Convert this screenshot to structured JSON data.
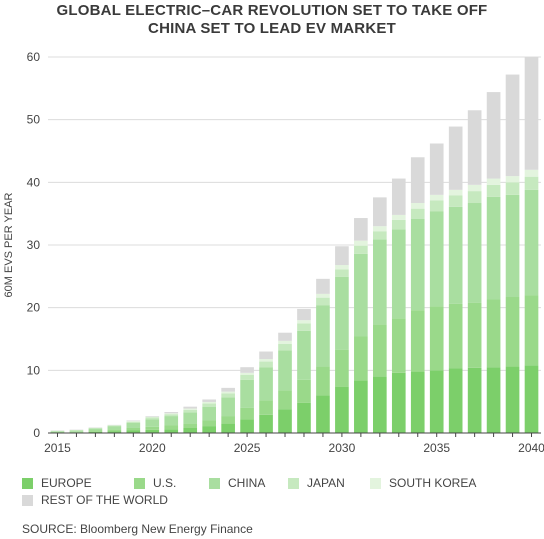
{
  "chart_data": {
    "type": "bar",
    "stacked": true,
    "title": "GLOBAL ELECTRIC–CAR REVOLUTION SET TO TAKE OFF",
    "subtitle": "CHINA SET TO LEAD EV MARKET",
    "ylabel": "60M EVS PER YEAR",
    "xlabel": "",
    "ylim": [
      0,
      60
    ],
    "yticks": [
      "0",
      "10",
      "20",
      "30",
      "40",
      "50",
      "60"
    ],
    "xticks": [
      "2015",
      "2020",
      "2025",
      "2030",
      "2035",
      "2040"
    ],
    "categories": [
      2015,
      2016,
      2017,
      2018,
      2019,
      2020,
      2021,
      2022,
      2023,
      2024,
      2025,
      2026,
      2027,
      2028,
      2029,
      2030,
      2031,
      2032,
      2033,
      2034,
      2035,
      2036,
      2037,
      2038,
      2039,
      2040
    ],
    "series": [
      {
        "name": "EUROPE",
        "color": "#7ccf6a",
        "values": [
          0.1,
          0.1,
          0.2,
          0.3,
          0.4,
          0.5,
          0.6,
          0.8,
          1.1,
          1.5,
          2.2,
          2.9,
          3.8,
          4.8,
          6.0,
          7.4,
          8.4,
          9.0,
          9.6,
          9.8,
          10.0,
          10.3,
          10.4,
          10.5,
          10.6,
          10.8
        ]
      },
      {
        "name": "U.S.",
        "color": "#9ad98a",
        "values": [
          0.1,
          0.1,
          0.2,
          0.3,
          0.4,
          0.5,
          0.6,
          0.7,
          0.9,
          1.2,
          1.8,
          2.3,
          3.0,
          3.7,
          4.6,
          5.9,
          7.0,
          8.3,
          8.7,
          9.8,
          10.2,
          10.3,
          10.4,
          10.8,
          11.1,
          11.2
        ]
      },
      {
        "name": "CHINA",
        "color": "#a9dea0",
        "values": [
          0.1,
          0.2,
          0.3,
          0.5,
          0.8,
          1.2,
          1.5,
          1.8,
          2.2,
          3.0,
          4.5,
          5.3,
          6.4,
          7.8,
          9.8,
          11.6,
          13.2,
          13.6,
          14.2,
          14.6,
          15.2,
          15.5,
          15.9,
          16.4,
          16.3,
          16.8
        ]
      },
      {
        "name": "JAPAN",
        "color": "#c6e9bf",
        "values": [
          0.05,
          0.05,
          0.1,
          0.1,
          0.2,
          0.3,
          0.3,
          0.4,
          0.5,
          0.6,
          0.8,
          0.9,
          1.0,
          1.2,
          1.2,
          1.2,
          1.3,
          1.3,
          1.5,
          1.6,
          1.7,
          1.8,
          1.9,
          1.9,
          2.0,
          2.1
        ]
      },
      {
        "name": "SOUTH KOREA",
        "color": "#e3f4de",
        "values": [
          0.02,
          0.03,
          0.05,
          0.05,
          0.1,
          0.1,
          0.15,
          0.2,
          0.25,
          0.3,
          0.3,
          0.4,
          0.5,
          0.5,
          0.6,
          0.7,
          0.8,
          0.8,
          0.8,
          0.9,
          0.9,
          0.9,
          1.0,
          1.0,
          1.0,
          1.1
        ]
      },
      {
        "name": "REST OF THE WORLD",
        "color": "#d9d9d9",
        "values": [
          0.05,
          0.05,
          0.05,
          0.05,
          0.1,
          0.1,
          0.2,
          0.3,
          0.4,
          0.6,
          0.9,
          1.2,
          1.3,
          1.8,
          2.4,
          3.0,
          3.6,
          4.6,
          5.8,
          7.3,
          8.2,
          10.1,
          11.9,
          13.8,
          16.2,
          18.0
        ]
      }
    ]
  },
  "source": "SOURCE: Bloomberg New Energy Finance"
}
